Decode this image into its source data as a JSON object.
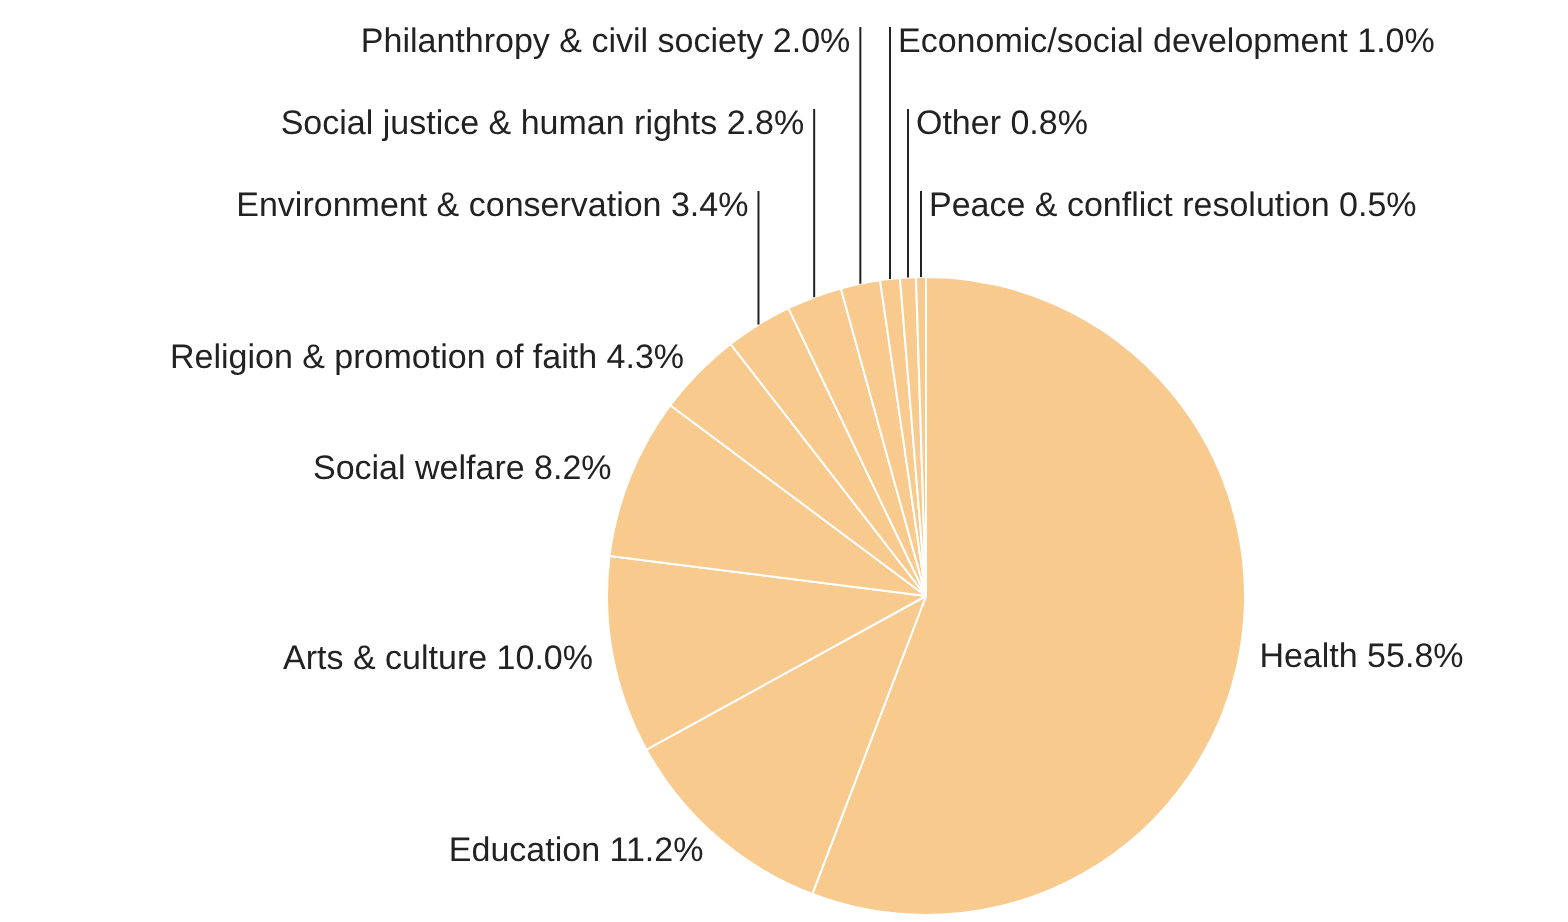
{
  "chart_data": {
    "type": "pie",
    "categories": [
      "Health",
      "Education",
      "Arts & culture",
      "Social welfare",
      "Religion & promotion of faith",
      "Environment & conservation",
      "Social justice & human rights",
      "Philanthropy & civil society",
      "Economic/social development",
      "Other",
      "Peace & conflict resolution"
    ],
    "values": [
      55.8,
      11.2,
      10.0,
      8.2,
      4.3,
      3.4,
      2.8,
      2.0,
      1.0,
      0.8,
      0.5
    ],
    "value_labels": [
      "55.8%",
      "11.2%",
      "10.0%",
      "8.2%",
      "4.3%",
      "3.4%",
      "2.8%",
      "2.0%",
      "1.0%",
      "0.8%",
      "0.5%"
    ],
    "colors": [
      "#f9ca8e",
      "#f9ca8e",
      "#f9ca8e",
      "#f9ca8e",
      "#f9ca8e",
      "#f9ca8e",
      "#f9ca8e",
      "#f9ca8e",
      "#f9ca8e",
      "#f9ca8e",
      "#f9ca8e"
    ],
    "legend": false
  }
}
